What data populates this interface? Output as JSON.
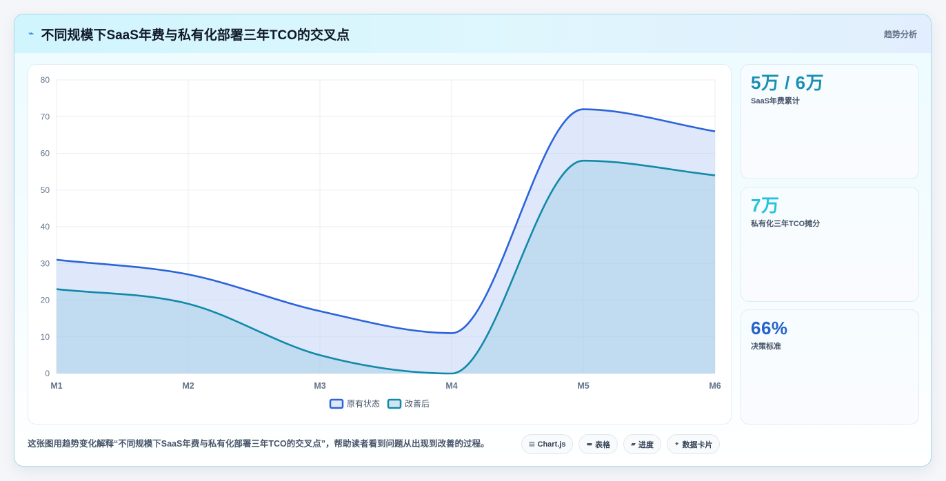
{
  "header": {
    "icon": "trend-icon",
    "title": "不同规模下SaaS年费与私有化部署三年TCO的交叉点",
    "tag": "趋势分析"
  },
  "stats": [
    {
      "value": "5万 / 6万",
      "label": "SaaS年费累计",
      "color": "#1a8fb3"
    },
    {
      "value": "7万",
      "label": "私有化三年TCO摊分",
      "color": "#22c3dd"
    },
    {
      "value": "66%",
      "label": "决策标准",
      "color": "#2563c9"
    }
  ],
  "footer": {
    "text": "这张图用趋势变化解释“不同规模下SaaS年费与私有化部署三年TCO的交叉点”，帮助读者看到问题从出现到改善的过程。",
    "chips": [
      {
        "icon": "chart-icon",
        "glyph": "▤",
        "label": "Chart.js"
      },
      {
        "icon": "table-icon",
        "glyph": "▬",
        "label": "表格"
      },
      {
        "icon": "progress-icon",
        "glyph": "▰",
        "label": "进度"
      },
      {
        "icon": "sparkle-icon",
        "glyph": "✦",
        "label": "数据卡片"
      }
    ]
  },
  "chart_data": {
    "type": "area",
    "x": [
      "M1",
      "M2",
      "M3",
      "M4",
      "M5",
      "M6"
    ],
    "ylim": [
      0,
      80
    ],
    "yticks": [
      0,
      10,
      20,
      30,
      40,
      50,
      60,
      70,
      80
    ],
    "grid": true,
    "legend": "bottom",
    "series": [
      {
        "name": "原有状态",
        "values": [
          31,
          27,
          17,
          11,
          72,
          66
        ],
        "color": "#2b63d9",
        "fill": "rgba(183, 203, 245, 0.45)"
      },
      {
        "name": "改善后",
        "values": [
          23,
          19,
          5,
          0,
          58,
          54
        ],
        "color": "#1189a8",
        "fill": "rgba(168, 208, 232, 0.55)"
      }
    ]
  }
}
